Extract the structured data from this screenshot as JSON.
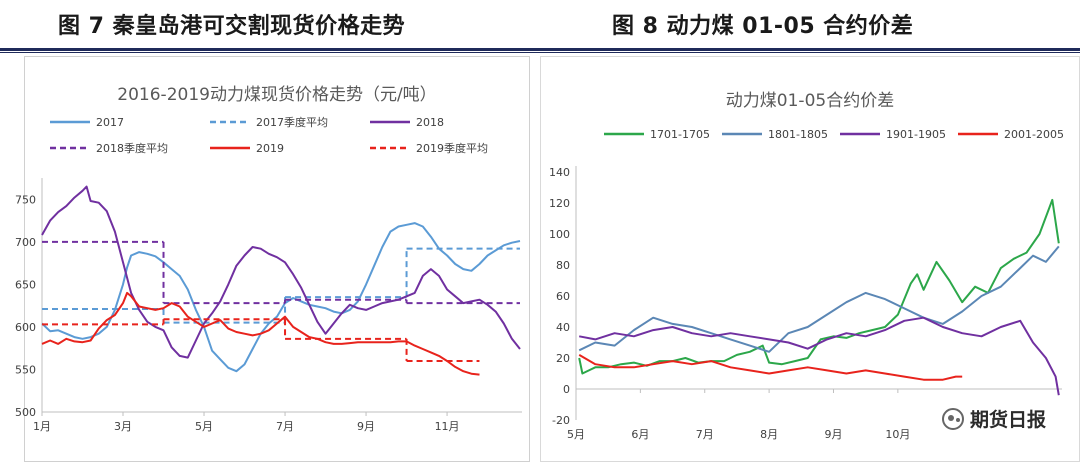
{
  "header": {
    "left_title": "图 7  秦皇岛港可交割现货价格走势",
    "right_title": "图 8  动力煤 01-05 合约价差"
  },
  "watermark": {
    "text": "期货日报",
    "icon": "wechat-icon"
  },
  "chart_data": [
    {
      "type": "line",
      "title": "2016-2019动力煤现货价格走势（元/吨）",
      "xlabel": "",
      "ylabel": "",
      "x_ticks": [
        "1月",
        "3月",
        "5月",
        "7月",
        "9月",
        "11月"
      ],
      "x_tick_months": [
        1,
        3,
        5,
        7,
        9,
        11
      ],
      "xlim": [
        1,
        12.85
      ],
      "y_ticks": [
        500,
        550,
        600,
        650,
        700,
        750
      ],
      "ylim": [
        500,
        768
      ],
      "grid": false,
      "legend": "top",
      "series": [
        {
          "name": "2017",
          "color": "#5b9bd5",
          "style": "solid",
          "x": [
            1,
            1.2,
            1.4,
            1.6,
            1.8,
            2.0,
            2.2,
            2.4,
            2.6,
            2.8,
            3.0,
            3.1,
            3.2,
            3.4,
            3.6,
            3.8,
            4.0,
            4.2,
            4.4,
            4.6,
            4.8,
            5.0,
            5.2,
            5.4,
            5.6,
            5.8,
            6.0,
            6.2,
            6.4,
            6.6,
            6.8,
            7.0,
            7.2,
            7.4,
            7.6,
            7.8,
            8.0,
            8.2,
            8.4,
            8.6,
            8.8,
            9.0,
            9.2,
            9.4,
            9.6,
            9.8,
            10.0,
            10.2,
            10.4,
            10.6,
            10.8,
            11.0,
            11.2,
            11.4,
            11.6,
            11.8,
            12.0,
            12.2,
            12.4,
            12.6,
            12.8
          ],
          "y": [
            604,
            595,
            596,
            592,
            588,
            586,
            588,
            592,
            600,
            620,
            650,
            670,
            684,
            688,
            686,
            683,
            676,
            668,
            660,
            644,
            620,
            600,
            572,
            562,
            552,
            548,
            556,
            574,
            592,
            604,
            612,
            628,
            634,
            630,
            626,
            624,
            622,
            618,
            616,
            620,
            630,
            650,
            672,
            694,
            712,
            718,
            720,
            722,
            718,
            706,
            692,
            684,
            674,
            668,
            666,
            674,
            684,
            690,
            696,
            699,
            701
          ]
        },
        {
          "name": "2017季度平均",
          "color": "#5b9bd5",
          "style": "dashed",
          "segments": [
            {
              "x": [
                1,
                4
              ],
              "y": [
                621,
                621
              ]
            },
            {
              "x": [
                4,
                7
              ],
              "y": [
                605,
                605
              ]
            },
            {
              "x": [
                7,
                10
              ],
              "y": [
                635,
                635
              ]
            },
            {
              "x": [
                10,
                12.8
              ],
              "y": [
                692,
                692
              ]
            }
          ]
        },
        {
          "name": "2018",
          "color": "#7030a0",
          "style": "solid",
          "x": [
            1,
            1.2,
            1.4,
            1.6,
            1.8,
            2.0,
            2.1,
            2.2,
            2.4,
            2.6,
            2.8,
            3.0,
            3.2,
            3.4,
            3.6,
            3.8,
            4.0,
            4.2,
            4.4,
            4.6,
            4.8,
            5.0,
            5.2,
            5.4,
            5.6,
            5.8,
            6.0,
            6.2,
            6.4,
            6.6,
            6.8,
            7.0,
            7.2,
            7.4,
            7.6,
            7.8,
            8.0,
            8.2,
            8.4,
            8.6,
            8.8,
            9.0,
            9.2,
            9.4,
            9.6,
            9.8,
            10.0,
            10.2,
            10.4,
            10.6,
            10.8,
            11.0,
            11.2,
            11.4,
            11.6,
            11.8,
            12.0,
            12.2,
            12.4,
            12.6,
            12.8
          ],
          "y": [
            708,
            725,
            735,
            742,
            752,
            760,
            765,
            748,
            746,
            736,
            712,
            676,
            640,
            620,
            606,
            600,
            596,
            576,
            566,
            564,
            584,
            604,
            616,
            630,
            650,
            672,
            684,
            694,
            692,
            686,
            682,
            676,
            662,
            646,
            626,
            606,
            592,
            604,
            616,
            626,
            622,
            620,
            624,
            628,
            630,
            632,
            636,
            640,
            660,
            668,
            660,
            644,
            636,
            628,
            630,
            632,
            626,
            618,
            604,
            586,
            574
          ]
        },
        {
          "name": "2018季度平均",
          "color": "#7030a0",
          "style": "dashed",
          "segments": [
            {
              "x": [
                1,
                4
              ],
              "y": [
                700,
                700
              ]
            },
            {
              "x": [
                4,
                7
              ],
              "y": [
                628,
                628
              ]
            },
            {
              "x": [
                7,
                10
              ],
              "y": [
                632,
                632
              ]
            },
            {
              "x": [
                10,
                12.8
              ],
              "y": [
                628,
                628
              ]
            }
          ]
        },
        {
          "name": "2019",
          "color": "#e8231c",
          "style": "solid",
          "x": [
            1,
            1.2,
            1.4,
            1.6,
            1.8,
            2.0,
            2.2,
            2.4,
            2.6,
            2.8,
            3.0,
            3.1,
            3.2,
            3.4,
            3.6,
            3.8,
            4.0,
            4.2,
            4.4,
            4.6,
            4.8,
            5.0,
            5.2,
            5.4,
            5.6,
            5.8,
            6.0,
            6.2,
            6.4,
            6.6,
            6.8,
            7.0,
            7.2,
            7.4,
            7.6,
            7.8,
            8.0,
            8.2,
            8.4,
            8.6,
            8.8,
            9.0,
            9.2,
            9.4,
            9.6,
            9.8,
            10.0,
            10.2,
            10.4,
            10.6,
            10.8,
            11.0,
            11.2,
            11.4,
            11.6,
            11.8
          ],
          "y": [
            580,
            584,
            580,
            586,
            583,
            582,
            584,
            598,
            608,
            614,
            628,
            640,
            636,
            624,
            622,
            620,
            622,
            628,
            624,
            612,
            606,
            600,
            604,
            608,
            598,
            594,
            592,
            590,
            592,
            596,
            604,
            612,
            600,
            594,
            588,
            586,
            582,
            580,
            580,
            581,
            582,
            582,
            582,
            582,
            582,
            583,
            583,
            578,
            574,
            570,
            566,
            560,
            553,
            548,
            545,
            544
          ]
        },
        {
          "name": "2019季度平均",
          "color": "#e8231c",
          "style": "dashed",
          "segments": [
            {
              "x": [
                1,
                4
              ],
              "y": [
                603,
                603
              ]
            },
            {
              "x": [
                4,
                7
              ],
              "y": [
                609,
                609
              ]
            },
            {
              "x": [
                7,
                10
              ],
              "y": [
                586,
                586
              ]
            },
            {
              "x": [
                10,
                11.8
              ],
              "y": [
                560,
                560
              ]
            }
          ]
        }
      ]
    },
    {
      "type": "line",
      "title": "动力煤01-05合约价差",
      "xlabel": "",
      "ylabel": "",
      "x_ticks": [
        "5月",
        "6月",
        "7月",
        "8月",
        "9月",
        "10月"
      ],
      "x_tick_months": [
        5,
        6,
        7,
        8,
        9,
        10
      ],
      "xlim": [
        5,
        12.55
      ],
      "y_ticks": [
        -20,
        0,
        20,
        40,
        60,
        80,
        100,
        120,
        140
      ],
      "ylim": [
        -20,
        140
      ],
      "grid": false,
      "legend": "top",
      "series": [
        {
          "name": "1701-1705",
          "color": "#2ca74a",
          "style": "solid",
          "x": [
            5.05,
            5.1,
            5.2,
            5.3,
            5.5,
            5.7,
            5.9,
            6.1,
            6.3,
            6.5,
            6.7,
            6.9,
            7.1,
            7.3,
            7.5,
            7.7,
            7.9,
            8.0,
            8.2,
            8.4,
            8.6,
            8.8,
            9.0,
            9.2,
            9.4,
            9.6,
            9.8,
            10.0,
            10.2,
            10.3,
            10.4,
            10.6,
            10.8,
            11.0,
            11.2,
            11.4,
            11.6,
            11.8,
            12.0,
            12.2,
            12.4,
            12.5
          ],
          "y": [
            20,
            10,
            12,
            14,
            14,
            16,
            17,
            15,
            18,
            18,
            20,
            17,
            18,
            18,
            22,
            24,
            28,
            17,
            16,
            18,
            20,
            32,
            34,
            33,
            36,
            38,
            40,
            48,
            68,
            74,
            64,
            82,
            70,
            56,
            66,
            62,
            78,
            84,
            88,
            100,
            122,
            94
          ]
        },
        {
          "name": "1801-1805",
          "color": "#5b87b5",
          "style": "solid",
          "x": [
            5.05,
            5.3,
            5.6,
            5.9,
            6.2,
            6.5,
            6.8,
            7.1,
            7.4,
            7.7,
            8.0,
            8.3,
            8.6,
            8.9,
            9.2,
            9.5,
            9.8,
            10.1,
            10.4,
            10.7,
            11.0,
            11.3,
            11.6,
            11.9,
            12.1,
            12.3,
            12.5
          ],
          "y": [
            25,
            30,
            28,
            38,
            46,
            42,
            40,
            36,
            32,
            28,
            24,
            36,
            40,
            48,
            56,
            62,
            58,
            52,
            46,
            42,
            50,
            60,
            66,
            78,
            86,
            82,
            92
          ]
        },
        {
          "name": "1901-1905",
          "color": "#7030a0",
          "style": "solid",
          "x": [
            5.05,
            5.3,
            5.6,
            5.9,
            6.2,
            6.5,
            6.8,
            7.1,
            7.4,
            7.7,
            8.0,
            8.3,
            8.6,
            8.9,
            9.2,
            9.5,
            9.8,
            10.1,
            10.4,
            10.7,
            11.0,
            11.3,
            11.6,
            11.9,
            12.1,
            12.3,
            12.45,
            12.5
          ],
          "y": [
            34,
            32,
            36,
            34,
            38,
            40,
            36,
            34,
            36,
            34,
            32,
            30,
            26,
            32,
            36,
            34,
            38,
            44,
            46,
            40,
            36,
            34,
            40,
            44,
            30,
            20,
            8,
            -4
          ]
        },
        {
          "name": "2001-2005",
          "color": "#e8231c",
          "style": "solid",
          "x": [
            5.05,
            5.3,
            5.6,
            5.9,
            6.2,
            6.5,
            6.8,
            7.1,
            7.4,
            7.7,
            8.0,
            8.3,
            8.6,
            8.9,
            9.2,
            9.5,
            9.8,
            10.1,
            10.4,
            10.7,
            10.9,
            11.0
          ],
          "y": [
            22,
            16,
            14,
            14,
            16,
            18,
            16,
            18,
            14,
            12,
            10,
            12,
            14,
            12,
            10,
            12,
            10,
            8,
            6,
            6,
            8,
            8
          ]
        }
      ]
    }
  ]
}
